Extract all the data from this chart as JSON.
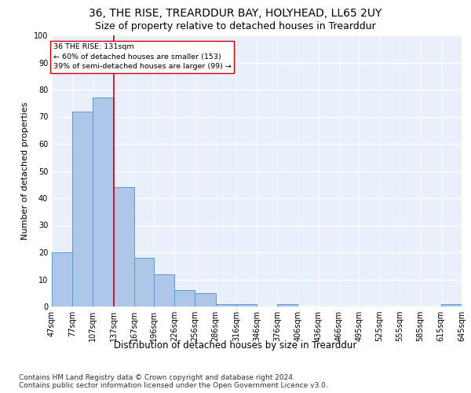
{
  "title": "36, THE RISE, TREARDDUR BAY, HOLYHEAD, LL65 2UY",
  "subtitle": "Size of property relative to detached houses in Trearddur",
  "xlabel": "Distribution of detached houses by size in Trearddur",
  "ylabel": "Number of detached properties",
  "bar_color": "#aec6e8",
  "bar_edge_color": "#5a9ad4",
  "background_color": "#eaf0fb",
  "grid_color": "#ffffff",
  "annotation_text": "36 THE RISE: 131sqm\n← 60% of detached houses are smaller (153)\n39% of semi-detached houses are larger (99) →",
  "vline_color": "#cc0000",
  "annotation_box_color": "#ffffff",
  "annotation_box_edge": "#cc0000",
  "bins": [
    47,
    77,
    107,
    137,
    167,
    196,
    226,
    256,
    286,
    316,
    346,
    376,
    406,
    436,
    466,
    495,
    525,
    555,
    585,
    615,
    645
  ],
  "values": [
    20,
    72,
    77,
    44,
    18,
    12,
    6,
    5,
    1,
    1,
    0,
    1,
    0,
    0,
    0,
    0,
    0,
    0,
    0,
    1
  ],
  "ylim": [
    0,
    100
  ],
  "yticks": [
    0,
    10,
    20,
    30,
    40,
    50,
    60,
    70,
    80,
    90,
    100
  ],
  "footer_text": "Contains HM Land Registry data © Crown copyright and database right 2024.\nContains public sector information licensed under the Open Government Licence v3.0.",
  "title_fontsize": 10,
  "subtitle_fontsize": 9,
  "xlabel_fontsize": 8.5,
  "ylabel_fontsize": 8,
  "tick_fontsize": 7,
  "footer_fontsize": 6.5,
  "vline_x": 137
}
